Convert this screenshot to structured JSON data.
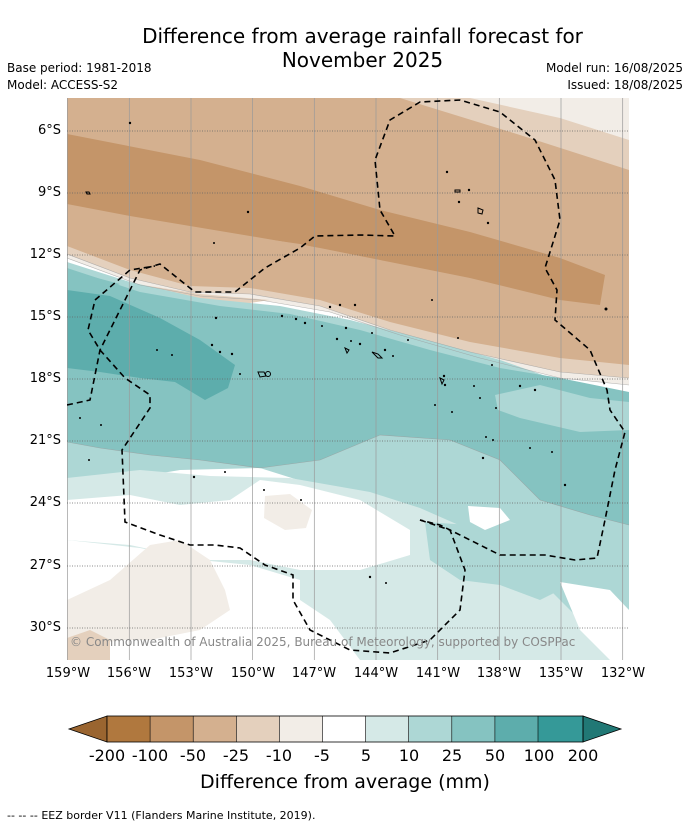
{
  "header": {
    "title_line1": "Difference from average rainfall forecast for",
    "title_line2": "November 2025",
    "base_period": "Base period: 1981-2018",
    "model": "Model: ACCESS-S2",
    "model_run": "Model run: 16/08/2025",
    "issued": "Issued: 18/08/2025"
  },
  "map": {
    "lat_labels": [
      "6°S",
      "9°S",
      "12°S",
      "15°S",
      "18°S",
      "21°S",
      "24°S",
      "27°S",
      "30°S"
    ],
    "lon_labels": [
      "159°W",
      "156°W",
      "153°W",
      "150°W",
      "147°W",
      "144°W",
      "141°W",
      "138°W",
      "135°W",
      "132°W"
    ],
    "copyright": "© Commonwealth of Australia 2025, Bureau of Meteorology, supported by COSPPac",
    "boundary": "EEZ border (dashed)"
  },
  "colorbar": {
    "title": "Difference from average (mm)",
    "ticks": [
      "-200",
      "-100",
      "-50",
      "-25",
      "-10",
      "-5",
      "5",
      "10",
      "25",
      "50",
      "100",
      "200"
    ],
    "colors": [
      "#9a6530",
      "#b0783e",
      "#c49569",
      "#d4b08f",
      "#e4d0bd",
      "#f2ede7",
      "#ffffff",
      "#d5e9e7",
      "#add7d5",
      "#85c3c1",
      "#5dadac",
      "#359998",
      "#217875"
    ]
  },
  "footer": {
    "legend_symbol": "-- -- --",
    "legend_text": "EEZ border V11 (Flanders Marine Institute, 2019)."
  }
}
